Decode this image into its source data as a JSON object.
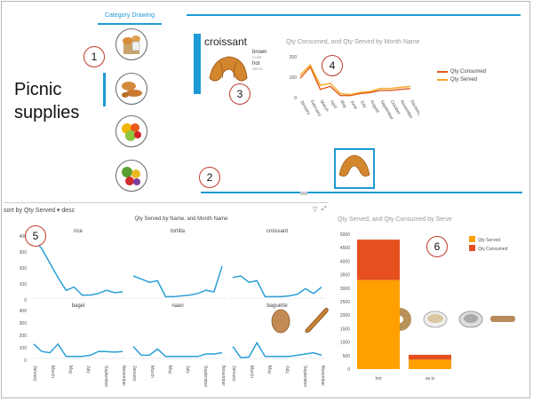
{
  "slicer": {
    "title": "Category Drawing",
    "icons": [
      "croissant-basket-icon",
      "bread-rolls-icon",
      "fruit-bowl-icon",
      "vegetables-icon"
    ]
  },
  "page_title": {
    "line1": "Picnic",
    "line2": "supplies"
  },
  "card": {
    "name": "croissant",
    "props": [
      {
        "value": "brown",
        "label": "Color"
      },
      {
        "value": "hot",
        "label": "Serve"
      }
    ]
  },
  "badges": [
    "1",
    "2",
    "3",
    "4",
    "5",
    "6"
  ],
  "line_chart": {
    "title": "Qty Consumed, and Qty Served by Month Name",
    "legend": [
      {
        "name": "Qty Consumed",
        "color": "#e05a1b"
      },
      {
        "name": "Qty Served",
        "color": "#f5a623"
      }
    ]
  },
  "thumbnails": [
    "potato-bread-icon",
    "baguette-icon",
    "croissant-icon",
    "bagel-icon",
    "rice-bowl-icon",
    "tortilla-bowl-icon",
    "naan-icon"
  ],
  "sort_label": "sort by Qty Served ▾ desc",
  "small_multiples_title": "Qty Served by Name, and Month Name",
  "bar_chart_title": "Qty Served, and Qty Consumed by Serve",
  "chart_data": [
    {
      "type": "line",
      "title": "Qty Consumed, and Qty Served by Month Name",
      "x": [
        "January",
        "February",
        "March",
        "April",
        "May",
        "June",
        "July",
        "August",
        "September",
        "October",
        "November",
        "December"
      ],
      "ylim": [
        0,
        200
      ],
      "yticks": [
        "200",
        "100",
        "0"
      ],
      "series": [
        {
          "name": "Qty Consumed",
          "color": "#e05a1b",
          "values": [
            95,
            150,
            40,
            55,
            10,
            10,
            20,
            25,
            35,
            35,
            40,
            45
          ]
        },
        {
          "name": "Qty Served",
          "color": "#f5a623",
          "values": [
            110,
            160,
            60,
            70,
            20,
            15,
            25,
            30,
            45,
            45,
            50,
            55
          ]
        }
      ],
      "legend_position": "right"
    },
    {
      "type": "line",
      "title": "Qty Served by Name, and Month Name",
      "small_multiples": true,
      "x_ticks": [
        "January",
        "March",
        "May",
        "July",
        "September",
        "November"
      ],
      "yticks": [
        "400",
        "300",
        "200",
        "100",
        "0"
      ],
      "ylim": [
        0,
        400
      ],
      "color": "#2a9fd6",
      "panels": [
        {
          "name": "rice",
          "values": [
            380,
            320,
            230,
            140,
            60,
            80,
            30,
            30,
            40,
            60,
            45,
            50
          ]
        },
        {
          "name": "tortilla",
          "values": [
            150,
            130,
            110,
            120,
            20,
            20,
            25,
            30,
            40,
            60,
            50,
            210
          ]
        },
        {
          "name": "croissant",
          "values": [
            140,
            150,
            110,
            120,
            20,
            20,
            20,
            25,
            35,
            70,
            40,
            80
          ]
        },
        {
          "name": "bagel",
          "values": [
            130,
            70,
            60,
            130,
            30,
            30,
            30,
            40,
            70,
            70,
            65,
            70
          ]
        },
        {
          "name": "naan",
          "values": [
            110,
            40,
            40,
            90,
            30,
            30,
            30,
            30,
            30,
            50,
            50,
            60
          ]
        },
        {
          "name": "baguette",
          "values": [
            110,
            20,
            25,
            140,
            30,
            30,
            30,
            30,
            40,
            50,
            60,
            40
          ]
        }
      ]
    },
    {
      "type": "bar",
      "stacked": true,
      "title": "Qty Served, and Qty Consumed by Serve",
      "categories": [
        "hot",
        "as is"
      ],
      "ylim": [
        0,
        5000
      ],
      "yticks": [
        "5000",
        "4500",
        "4000",
        "3500",
        "3000",
        "2500",
        "2000",
        "1500",
        "1000",
        "500",
        "0"
      ],
      "series": [
        {
          "name": "Qty Served",
          "color": "#ffa000",
          "values": [
            3300,
            350
          ]
        },
        {
          "name": "Qty Consumed",
          "color": "#e5501e",
          "values": [
            1500,
            180
          ]
        }
      ],
      "legend_position": "right"
    }
  ]
}
